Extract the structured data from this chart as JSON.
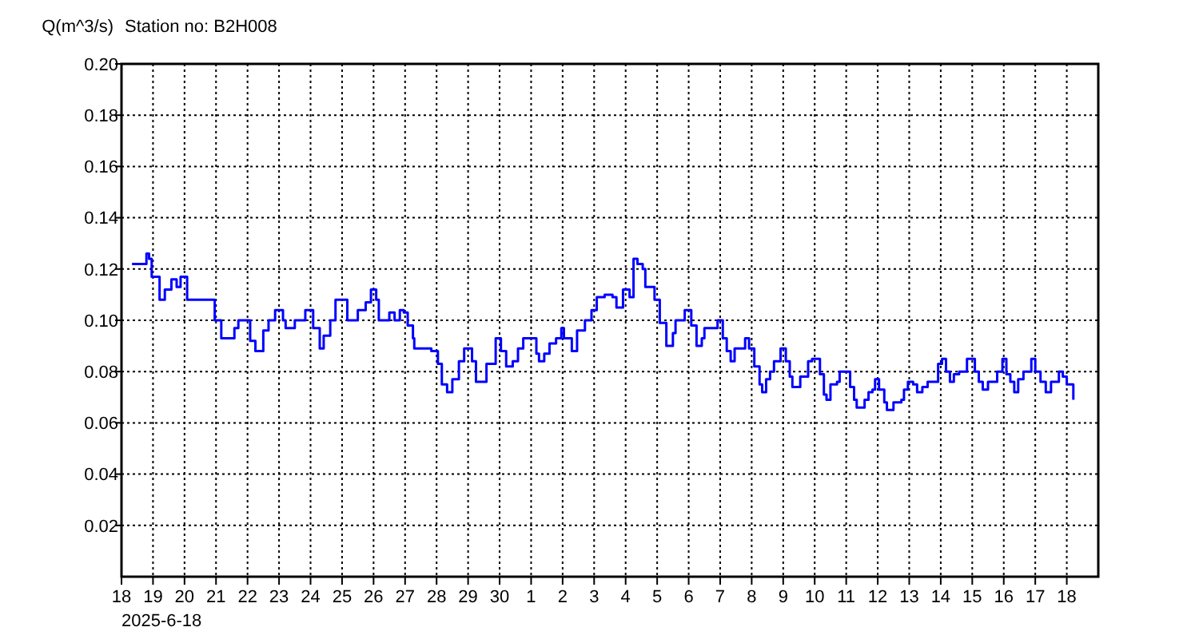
{
  "chart_data": {
    "type": "step",
    "title": "Station no: B2H008",
    "ylabel": "Q(m^3/s)",
    "annotations": [
      "2025-6-18"
    ],
    "xlim": [
      "2025-06-18",
      "2025-07-19"
    ],
    "xticks": [
      {
        "value": "2025-06-18",
        "label": "18"
      },
      {
        "value": "2025-06-19",
        "label": "19"
      },
      {
        "value": "2025-06-20",
        "label": "20"
      },
      {
        "value": "2025-06-21",
        "label": "21"
      },
      {
        "value": "2025-06-22",
        "label": "22"
      },
      {
        "value": "2025-06-23",
        "label": "23"
      },
      {
        "value": "2025-06-24",
        "label": "24"
      },
      {
        "value": "2025-06-25",
        "label": "25"
      },
      {
        "value": "2025-06-26",
        "label": "26"
      },
      {
        "value": "2025-06-27",
        "label": "27"
      },
      {
        "value": "2025-06-28",
        "label": "28"
      },
      {
        "value": "2025-06-29",
        "label": "29"
      },
      {
        "value": "2025-06-30",
        "label": "30"
      },
      {
        "value": "2025-07-01",
        "label": "1"
      },
      {
        "value": "2025-07-02",
        "label": "2"
      },
      {
        "value": "2025-07-03",
        "label": "3"
      },
      {
        "value": "2025-07-04",
        "label": "4"
      },
      {
        "value": "2025-07-05",
        "label": "5"
      },
      {
        "value": "2025-07-06",
        "label": "6"
      },
      {
        "value": "2025-07-07",
        "label": "7"
      },
      {
        "value": "2025-07-08",
        "label": "8"
      },
      {
        "value": "2025-07-09",
        "label": "9"
      },
      {
        "value": "2025-07-10",
        "label": "10"
      },
      {
        "value": "2025-07-11",
        "label": "11"
      },
      {
        "value": "2025-07-12",
        "label": "12"
      },
      {
        "value": "2025-07-13",
        "label": "13"
      },
      {
        "value": "2025-07-14",
        "label": "14"
      },
      {
        "value": "2025-07-15",
        "label": "15"
      },
      {
        "value": "2025-07-16",
        "label": "16"
      },
      {
        "value": "2025-07-17",
        "label": "17"
      },
      {
        "value": "2025-07-18",
        "label": "18"
      }
    ],
    "ylim": [
      0,
      0.2
    ],
    "yticks": [
      0.02,
      0.04,
      0.06,
      0.08,
      {
        "value": 0.1,
        "label": "0.10"
      },
      0.12,
      0.14,
      0.16,
      0.18,
      {
        "value": 0.2,
        "label": "0.20"
      }
    ],
    "grid": true,
    "series": [
      {
        "color": "#0000ff",
        "x": [
          "2025-06-18T08:00",
          "2025-06-18T19:00",
          "2025-06-18T21:00",
          "2025-06-18T23:00",
          "2025-06-19T05:00",
          "2025-06-19T09:00",
          "2025-06-19T14:00",
          "2025-06-19T18:00",
          "2025-06-19T21:00",
          "2025-06-20T02:00",
          "2025-06-20T21:00",
          "2025-06-20T23:00",
          "2025-06-21T04:00",
          "2025-06-21T11:00",
          "2025-06-21T14:00",
          "2025-06-21T17:00",
          "2025-06-21T22:00",
          "2025-06-22T02:00",
          "2025-06-22T06:00",
          "2025-06-22T12:00",
          "2025-06-22T16:00",
          "2025-06-22T21:00",
          "2025-06-23T03:00",
          "2025-06-23T05:00",
          "2025-06-23T09:00",
          "2025-06-23T12:00",
          "2025-06-23T20:00",
          "2025-06-24T00:00",
          "2025-06-24T02:00",
          "2025-06-24T07:00",
          "2025-06-24T10:00",
          "2025-06-24T15:00",
          "2025-06-24T19:00",
          "2025-06-25T01:00",
          "2025-06-25T04:00",
          "2025-06-25T09:00",
          "2025-06-25T12:00",
          "2025-06-25T18:00",
          "2025-06-25T22:00",
          "2025-06-26T02:00",
          "2025-06-26T04:00",
          "2025-06-26T10:00",
          "2025-06-26T12:00",
          "2025-06-26T16:00",
          "2025-06-26T20:00",
          "2025-06-26T23:00",
          "2025-06-27T02:00",
          "2025-06-27T06:00",
          "2025-06-27T07:00",
          "2025-06-27T18:00",
          "2025-06-27T20:00",
          "2025-06-28T01:00",
          "2025-06-28T04:00",
          "2025-06-28T08:00",
          "2025-06-28T12:00",
          "2025-06-28T17:00",
          "2025-06-28T21:00",
          "2025-06-29T00:00",
          "2025-06-29T03:00",
          "2025-06-29T06:00",
          "2025-06-29T12:00",
          "2025-06-29T14:00",
          "2025-06-29T21:00",
          "2025-06-30T01:00",
          "2025-06-30T05:00",
          "2025-06-30T10:00",
          "2025-06-30T14:00",
          "2025-06-30T18:00",
          "2025-06-30T23:00",
          "2025-07-01T04:00",
          "2025-07-01T06:00",
          "2025-07-01T10:00",
          "2025-07-01T14:00",
          "2025-07-01T19:00",
          "2025-07-01T23:00",
          "2025-07-02T01:00",
          "2025-07-02T07:00",
          "2025-07-02T11:00",
          "2025-07-02T17:00",
          "2025-07-02T22:00",
          "2025-07-03T02:00",
          "2025-07-03T08:00",
          "2025-07-03T14:00",
          "2025-07-03T17:00",
          "2025-07-03T22:00",
          "2025-07-04T03:00",
          "2025-07-04T06:00",
          "2025-07-04T09:00",
          "2025-07-04T13:00",
          "2025-07-04T15:00",
          "2025-07-04T19:00",
          "2025-07-04T22:00",
          "2025-07-05T02:00",
          "2025-07-05T07:00",
          "2025-07-05T12:00",
          "2025-07-05T14:00",
          "2025-07-05T19:00",
          "2025-07-05T21:00",
          "2025-07-06T02:00",
          "2025-07-06T06:00",
          "2025-07-06T10:00",
          "2025-07-06T12:00",
          "2025-07-06T21:00",
          "2025-07-06T22:00",
          "2025-07-07T02:00",
          "2025-07-07T05:00",
          "2025-07-07T08:00",
          "2025-07-07T11:00",
          "2025-07-07T15:00",
          "2025-07-07T19:00",
          "2025-07-07T22:00",
          "2025-07-08T02:00",
          "2025-07-08T06:00",
          "2025-07-08T08:00",
          "2025-07-08T11:00",
          "2025-07-08T14:00",
          "2025-07-08T17:00",
          "2025-07-08T22:00",
          "2025-07-09T02:00",
          "2025-07-09T05:00",
          "2025-07-09T07:00",
          "2025-07-09T13:00",
          "2025-07-09T19:00",
          "2025-07-09T22:00",
          "2025-07-10T04:00",
          "2025-07-10T07:00",
          "2025-07-10T09:00",
          "2025-07-10T12:00",
          "2025-07-10T17:00",
          "2025-07-10T19:00",
          "2025-07-11T00:00",
          "2025-07-11T03:00",
          "2025-07-11T06:00",
          "2025-07-11T08:00",
          "2025-07-11T14:00",
          "2025-07-11T17:00",
          "2025-07-11T20:00",
          "2025-07-11T22:00",
          "2025-07-12T01:00",
          "2025-07-12T05:00",
          "2025-07-12T07:00",
          "2025-07-12T11:00",
          "2025-07-12T12:00",
          "2025-07-12T18:00",
          "2025-07-12T20:00",
          "2025-07-12T23:00",
          "2025-07-13T03:00",
          "2025-07-13T06:00",
          "2025-07-13T10:00",
          "2025-07-13T14:00",
          "2025-07-13T20:00",
          "2025-07-13T22:00",
          "2025-07-14T01:00",
          "2025-07-14T04:00",
          "2025-07-14T07:00",
          "2025-07-14T10:00",
          "2025-07-14T14:00",
          "2025-07-14T20:00",
          "2025-07-14T23:00",
          "2025-07-15T02:00",
          "2025-07-15T05:00",
          "2025-07-15T08:00",
          "2025-07-15T12:00",
          "2025-07-15T16:00",
          "2025-07-15T19:00",
          "2025-07-15T23:00",
          "2025-07-16T02:00",
          "2025-07-16T05:00",
          "2025-07-16T08:00",
          "2025-07-16T11:00",
          "2025-07-16T15:00",
          "2025-07-16T21:00",
          "2025-07-17T00:00",
          "2025-07-17T04:00",
          "2025-07-17T08:00",
          "2025-07-17T12:00",
          "2025-07-17T18:00",
          "2025-07-17T21:00",
          "2025-07-18T00:00",
          "2025-07-18T05:00"
        ],
        "values": [
          0.122,
          0.126,
          0.124,
          0.117,
          0.108,
          0.112,
          0.116,
          0.113,
          0.117,
          0.108,
          0.108,
          0.1,
          0.093,
          0.093,
          0.097,
          0.1,
          0.1,
          0.092,
          0.088,
          0.096,
          0.1,
          0.104,
          0.1,
          0.097,
          0.097,
          0.1,
          0.104,
          0.104,
          0.097,
          0.089,
          0.094,
          0.1,
          0.108,
          0.108,
          0.1,
          0.1,
          0.104,
          0.107,
          0.112,
          0.108,
          0.1,
          0.1,
          0.103,
          0.1,
          0.104,
          0.103,
          0.098,
          0.093,
          0.089,
          0.089,
          0.088,
          0.083,
          0.075,
          0.072,
          0.077,
          0.084,
          0.089,
          0.089,
          0.084,
          0.076,
          0.076,
          0.083,
          0.093,
          0.088,
          0.082,
          0.084,
          0.089,
          0.093,
          0.093,
          0.087,
          0.084,
          0.087,
          0.091,
          0.093,
          0.097,
          0.093,
          0.088,
          0.096,
          0.1,
          0.104,
          0.109,
          0.11,
          0.109,
          0.105,
          0.112,
          0.109,
          0.124,
          0.122,
          0.12,
          0.113,
          0.113,
          0.108,
          0.099,
          0.09,
          0.095,
          0.1,
          0.1,
          0.104,
          0.098,
          0.09,
          0.093,
          0.097,
          0.097,
          0.1,
          0.093,
          0.088,
          0.084,
          0.089,
          0.089,
          0.093,
          0.089,
          0.082,
          0.075,
          0.072,
          0.077,
          0.08,
          0.084,
          0.089,
          0.084,
          0.078,
          0.074,
          0.078,
          0.084,
          0.085,
          0.079,
          0.071,
          0.069,
          0.075,
          0.076,
          0.08,
          0.08,
          0.074,
          0.069,
          0.066,
          0.069,
          0.072,
          0.073,
          0.077,
          0.073,
          0.068,
          0.065,
          0.065,
          0.068,
          0.069,
          0.073,
          0.076,
          0.075,
          0.072,
          0.074,
          0.076,
          0.076,
          0.083,
          0.085,
          0.08,
          0.076,
          0.079,
          0.08,
          0.085,
          0.085,
          0.08,
          0.076,
          0.073,
          0.076,
          0.076,
          0.08,
          0.085,
          0.079,
          0.076,
          0.072,
          0.077,
          0.08,
          0.085,
          0.08,
          0.076,
          0.072,
          0.076,
          0.08,
          0.078,
          0.075,
          0.069
        ]
      }
    ]
  }
}
